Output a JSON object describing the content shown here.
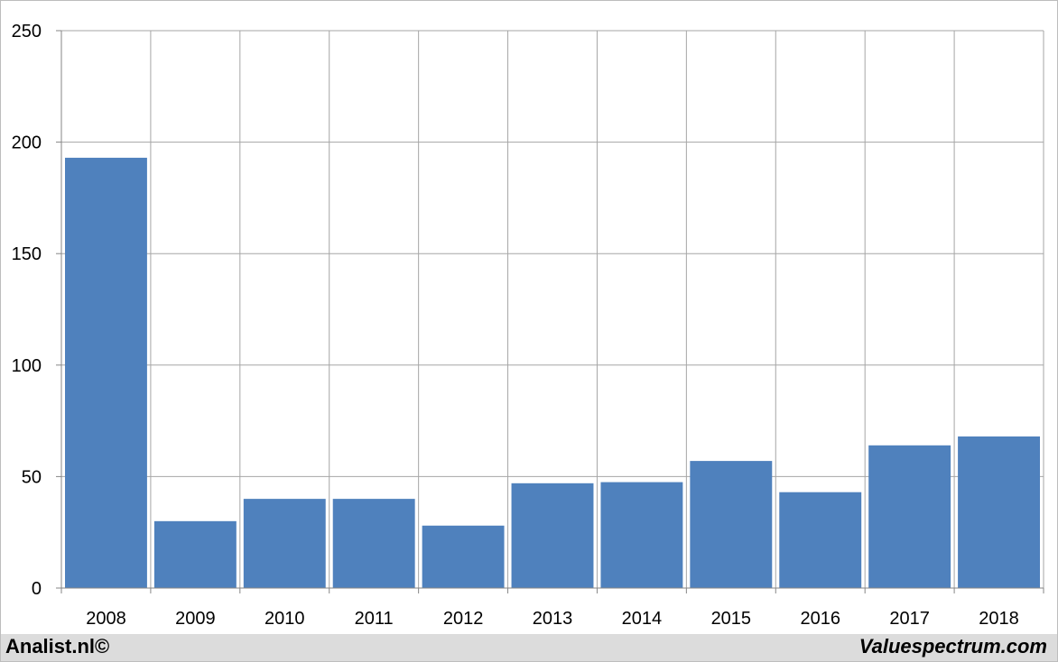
{
  "chart_data": {
    "type": "bar",
    "categories": [
      "2008",
      "2009",
      "2010",
      "2011",
      "2012",
      "2013",
      "2014",
      "2015",
      "2016",
      "2017",
      "2018"
    ],
    "values": [
      193,
      30,
      40,
      40,
      28,
      47,
      47.5,
      57,
      43,
      64,
      68
    ],
    "ylim": [
      0,
      250
    ],
    "yticks": [
      0,
      50,
      100,
      150,
      200,
      250
    ],
    "grid": true,
    "legend": "none",
    "bar_color": "#4f81bd"
  },
  "footer": {
    "left_credit": "Analist.nl©",
    "right_credit": "Valuespectrum.com"
  }
}
